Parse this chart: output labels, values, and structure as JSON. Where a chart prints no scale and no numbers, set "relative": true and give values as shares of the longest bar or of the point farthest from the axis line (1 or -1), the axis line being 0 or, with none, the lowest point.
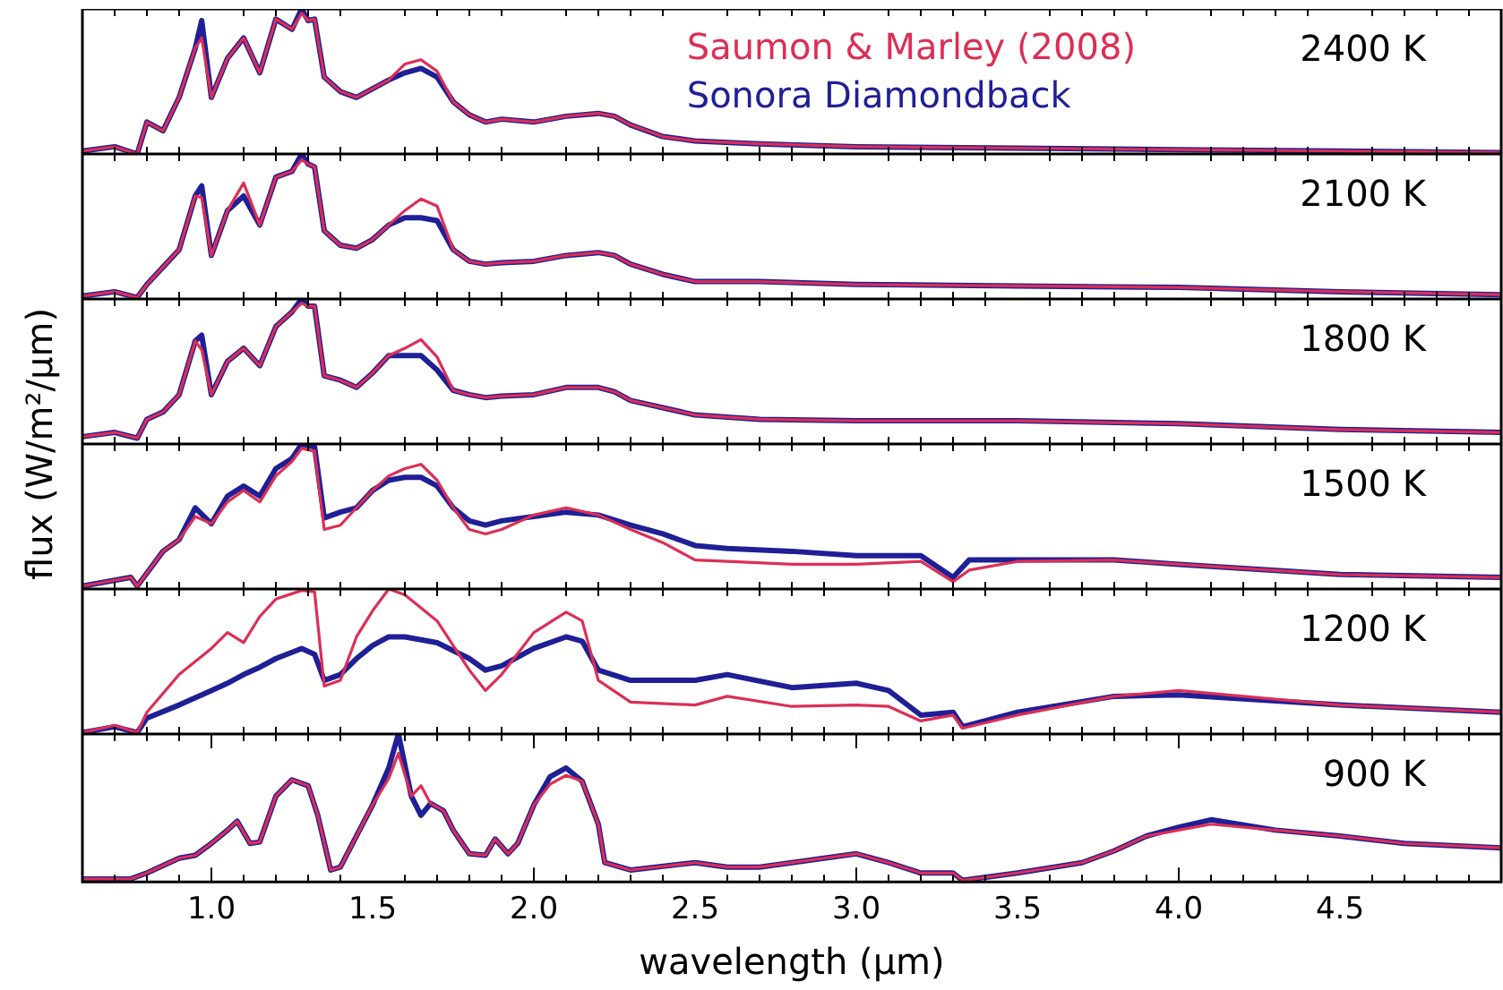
{
  "chart_data": [
    {
      "type": "line",
      "relative": true,
      "tick_labels": false,
      "legend": "top right",
      "annotations": [
        "2400 K"
      ],
      "xlim": [
        0.6,
        5.0
      ],
      "xticks": [
        {
          "value": 0.7,
          "label": null
        },
        {
          "value": 0.8,
          "label": null
        },
        {
          "value": 0.9,
          "label": null
        },
        1,
        {
          "value": 1.1,
          "label": null
        },
        {
          "value": 1.2,
          "label": null
        },
        {
          "value": 1.3,
          "label": null
        },
        {
          "value": 1.4,
          "label": null
        },
        1.5,
        {
          "value": 1.6,
          "label": null
        },
        {
          "value": 1.7,
          "label": null
        },
        {
          "value": 1.8,
          "label": null
        },
        {
          "value": 1.9,
          "label": null
        },
        2,
        {
          "value": 2.1,
          "label": null
        },
        {
          "value": 2.2,
          "label": null
        },
        {
          "value": 2.3,
          "label": null
        },
        {
          "value": 2.4,
          "label": null
        },
        2.5,
        {
          "value": 2.6,
          "label": null
        },
        {
          "value": 2.7,
          "label": null
        },
        {
          "value": 2.8,
          "label": null
        },
        {
          "value": 2.9,
          "label": null
        },
        3,
        {
          "value": 3.1,
          "label": null
        },
        {
          "value": 3.2,
          "label": null
        },
        {
          "value": 3.3,
          "label": null
        },
        {
          "value": 3.4,
          "label": null
        },
        3.5,
        {
          "value": 3.6,
          "label": null
        },
        {
          "value": 3.7,
          "label": null
        },
        {
          "value": 3.8,
          "label": null
        },
        {
          "value": 3.9,
          "label": null
        },
        4,
        {
          "value": 4.1,
          "label": null
        },
        {
          "value": 4.2,
          "label": null
        },
        {
          "value": 4.3,
          "label": null
        },
        {
          "value": 4.4,
          "label": null
        },
        4.5,
        {
          "value": 4.6,
          "label": null
        },
        {
          "value": 4.7,
          "label": null
        },
        {
          "value": 4.8,
          "label": null
        },
        {
          "value": 4.9,
          "label": null
        }
      ],
      "x": [
        0.6,
        0.7,
        0.77,
        0.8,
        0.85,
        0.9,
        0.95,
        0.97,
        1.0,
        1.05,
        1.1,
        1.15,
        1.2,
        1.25,
        1.28,
        1.3,
        1.32,
        1.35,
        1.4,
        1.45,
        1.5,
        1.55,
        1.6,
        1.65,
        1.7,
        1.75,
        1.8,
        1.85,
        1.9,
        2.0,
        2.1,
        2.2,
        2.25,
        2.3,
        2.4,
        2.5,
        2.7,
        3.0,
        3.5,
        4.0,
        4.5,
        5.0
      ],
      "series": [
        {
          "name": "Saumon & Marley (2008)",
          "color": "#dc2f55",
          "values": [
            0.02,
            0.05,
            0.0,
            0.22,
            0.16,
            0.39,
            0.73,
            0.8,
            0.39,
            0.66,
            0.8,
            0.56,
            0.93,
            0.86,
            0.97,
            0.92,
            0.93,
            0.53,
            0.43,
            0.39,
            0.45,
            0.51,
            0.62,
            0.65,
            0.57,
            0.36,
            0.27,
            0.22,
            0.24,
            0.22,
            0.26,
            0.28,
            0.26,
            0.2,
            0.12,
            0.09,
            0.07,
            0.05,
            0.04,
            0.03,
            0.02,
            0.01
          ]
        },
        {
          "name": "Sonora Diamondback",
          "color": "#1f1f96",
          "values": [
            0.02,
            0.05,
            0.0,
            0.22,
            0.16,
            0.39,
            0.73,
            0.92,
            0.39,
            0.66,
            0.8,
            0.56,
            0.93,
            0.86,
            1.0,
            0.92,
            0.93,
            0.53,
            0.43,
            0.39,
            0.45,
            0.51,
            0.56,
            0.59,
            0.53,
            0.36,
            0.27,
            0.22,
            0.24,
            0.22,
            0.26,
            0.28,
            0.26,
            0.2,
            0.12,
            0.09,
            0.07,
            0.05,
            0.04,
            0.03,
            0.02,
            0.01
          ]
        }
      ]
    },
    {
      "type": "line",
      "relative": true,
      "tick_labels": false,
      "annotations": [
        "2100 K"
      ],
      "xlim": [
        0.6,
        5.0
      ],
      "xticks": [
        {
          "value": 0.7,
          "label": null
        },
        {
          "value": 0.8,
          "label": null
        },
        {
          "value": 0.9,
          "label": null
        },
        1,
        {
          "value": 1.1,
          "label": null
        },
        {
          "value": 1.2,
          "label": null
        },
        {
          "value": 1.3,
          "label": null
        },
        {
          "value": 1.4,
          "label": null
        },
        1.5,
        {
          "value": 1.6,
          "label": null
        },
        {
          "value": 1.7,
          "label": null
        },
        {
          "value": 1.8,
          "label": null
        },
        {
          "value": 1.9,
          "label": null
        },
        2,
        {
          "value": 2.1,
          "label": null
        },
        {
          "value": 2.2,
          "label": null
        },
        {
          "value": 2.3,
          "label": null
        },
        {
          "value": 2.4,
          "label": null
        },
        2.5,
        {
          "value": 2.6,
          "label": null
        },
        {
          "value": 2.7,
          "label": null
        },
        {
          "value": 2.8,
          "label": null
        },
        {
          "value": 2.9,
          "label": null
        },
        3,
        {
          "value": 3.1,
          "label": null
        },
        {
          "value": 3.2,
          "label": null
        },
        {
          "value": 3.3,
          "label": null
        },
        {
          "value": 3.4,
          "label": null
        },
        3.5,
        {
          "value": 3.6,
          "label": null
        },
        {
          "value": 3.7,
          "label": null
        },
        {
          "value": 3.8,
          "label": null
        },
        {
          "value": 3.9,
          "label": null
        },
        4,
        {
          "value": 4.1,
          "label": null
        },
        {
          "value": 4.2,
          "label": null
        },
        {
          "value": 4.3,
          "label": null
        },
        {
          "value": 4.4,
          "label": null
        },
        4.5,
        {
          "value": 4.6,
          "label": null
        },
        {
          "value": 4.7,
          "label": null
        },
        {
          "value": 4.8,
          "label": null
        },
        {
          "value": 4.9,
          "label": null
        }
      ],
      "x": [
        0.6,
        0.7,
        0.77,
        0.8,
        0.85,
        0.9,
        0.95,
        0.97,
        1.0,
        1.05,
        1.1,
        1.15,
        1.2,
        1.25,
        1.28,
        1.3,
        1.32,
        1.35,
        1.4,
        1.45,
        1.5,
        1.55,
        1.6,
        1.65,
        1.7,
        1.75,
        1.8,
        1.85,
        1.9,
        2.0,
        2.1,
        2.2,
        2.25,
        2.3,
        2.4,
        2.5,
        2.7,
        3.0,
        3.5,
        4.0,
        4.5,
        5.0
      ],
      "series": [
        {
          "color": "#dc2f55",
          "values": [
            0.02,
            0.05,
            0.01,
            0.1,
            0.22,
            0.34,
            0.71,
            0.7,
            0.3,
            0.61,
            0.8,
            0.51,
            0.84,
            0.88,
            0.96,
            0.93,
            0.91,
            0.47,
            0.37,
            0.35,
            0.41,
            0.51,
            0.61,
            0.69,
            0.64,
            0.34,
            0.26,
            0.24,
            0.25,
            0.26,
            0.3,
            0.32,
            0.3,
            0.24,
            0.17,
            0.12,
            0.12,
            0.1,
            0.09,
            0.08,
            0.05,
            0.03
          ]
        },
        {
          "color": "#1f1f96",
          "values": [
            0.02,
            0.05,
            0.01,
            0.1,
            0.22,
            0.34,
            0.71,
            0.78,
            0.3,
            0.61,
            0.71,
            0.51,
            0.84,
            0.88,
            1.0,
            0.93,
            0.91,
            0.47,
            0.37,
            0.35,
            0.41,
            0.51,
            0.56,
            0.56,
            0.54,
            0.34,
            0.26,
            0.24,
            0.25,
            0.26,
            0.3,
            0.32,
            0.3,
            0.24,
            0.17,
            0.12,
            0.12,
            0.1,
            0.09,
            0.08,
            0.05,
            0.03
          ]
        }
      ]
    },
    {
      "type": "line",
      "relative": true,
      "tick_labels": false,
      "annotations": [
        "1800 K"
      ],
      "xlim": [
        0.6,
        5.0
      ],
      "xticks": [
        {
          "value": 0.7,
          "label": null
        },
        {
          "value": 0.8,
          "label": null
        },
        {
          "value": 0.9,
          "label": null
        },
        1,
        {
          "value": 1.1,
          "label": null
        },
        {
          "value": 1.2,
          "label": null
        },
        {
          "value": 1.3,
          "label": null
        },
        {
          "value": 1.4,
          "label": null
        },
        1.5,
        {
          "value": 1.6,
          "label": null
        },
        {
          "value": 1.7,
          "label": null
        },
        {
          "value": 1.8,
          "label": null
        },
        {
          "value": 1.9,
          "label": null
        },
        2,
        {
          "value": 2.1,
          "label": null
        },
        {
          "value": 2.2,
          "label": null
        },
        {
          "value": 2.3,
          "label": null
        },
        {
          "value": 2.4,
          "label": null
        },
        2.5,
        {
          "value": 2.6,
          "label": null
        },
        {
          "value": 2.7,
          "label": null
        },
        {
          "value": 2.8,
          "label": null
        },
        {
          "value": 2.9,
          "label": null
        },
        3,
        {
          "value": 3.1,
          "label": null
        },
        {
          "value": 3.2,
          "label": null
        },
        {
          "value": 3.3,
          "label": null
        },
        {
          "value": 3.4,
          "label": null
        },
        3.5,
        {
          "value": 3.6,
          "label": null
        },
        {
          "value": 3.7,
          "label": null
        },
        {
          "value": 3.8,
          "label": null
        },
        {
          "value": 3.9,
          "label": null
        },
        4,
        {
          "value": 4.1,
          "label": null
        },
        {
          "value": 4.2,
          "label": null
        },
        {
          "value": 4.3,
          "label": null
        },
        {
          "value": 4.4,
          "label": null
        },
        4.5,
        {
          "value": 4.6,
          "label": null
        },
        {
          "value": 4.7,
          "label": null
        },
        {
          "value": 4.8,
          "label": null
        },
        {
          "value": 4.9,
          "label": null
        }
      ],
      "x": [
        0.6,
        0.7,
        0.77,
        0.8,
        0.85,
        0.9,
        0.95,
        0.97,
        1.0,
        1.05,
        1.1,
        1.15,
        1.2,
        1.25,
        1.28,
        1.3,
        1.32,
        1.35,
        1.4,
        1.45,
        1.5,
        1.55,
        1.6,
        1.65,
        1.7,
        1.75,
        1.8,
        1.85,
        1.9,
        2.0,
        2.1,
        2.2,
        2.25,
        2.3,
        2.4,
        2.5,
        2.7,
        3.0,
        3.5,
        4.0,
        4.5,
        5.0
      ],
      "series": [
        {
          "color": "#dc2f55",
          "values": [
            0.05,
            0.08,
            0.04,
            0.17,
            0.22,
            0.34,
            0.71,
            0.65,
            0.34,
            0.57,
            0.66,
            0.54,
            0.81,
            0.91,
            0.97,
            0.95,
            0.95,
            0.47,
            0.44,
            0.39,
            0.49,
            0.61,
            0.66,
            0.72,
            0.6,
            0.37,
            0.34,
            0.32,
            0.33,
            0.34,
            0.39,
            0.39,
            0.36,
            0.3,
            0.25,
            0.2,
            0.17,
            0.16,
            0.16,
            0.14,
            0.1,
            0.08
          ]
        },
        {
          "color": "#1f1f96",
          "values": [
            0.05,
            0.08,
            0.04,
            0.17,
            0.22,
            0.34,
            0.71,
            0.75,
            0.34,
            0.57,
            0.66,
            0.54,
            0.81,
            0.91,
            1.0,
            0.95,
            0.95,
            0.47,
            0.44,
            0.39,
            0.49,
            0.61,
            0.61,
            0.61,
            0.51,
            0.37,
            0.34,
            0.32,
            0.33,
            0.34,
            0.39,
            0.39,
            0.36,
            0.3,
            0.25,
            0.2,
            0.17,
            0.16,
            0.16,
            0.14,
            0.1,
            0.08
          ]
        }
      ]
    },
    {
      "type": "line",
      "relative": true,
      "tick_labels": false,
      "ylabel": "flux (W/m²/μm)",
      "annotations": [
        "1500 K"
      ],
      "xlim": [
        0.6,
        5.0
      ],
      "xticks": [
        {
          "value": 0.7,
          "label": null
        },
        {
          "value": 0.8,
          "label": null
        },
        {
          "value": 0.9,
          "label": null
        },
        1,
        {
          "value": 1.1,
          "label": null
        },
        {
          "value": 1.2,
          "label": null
        },
        {
          "value": 1.3,
          "label": null
        },
        {
          "value": 1.4,
          "label": null
        },
        1.5,
        {
          "value": 1.6,
          "label": null
        },
        {
          "value": 1.7,
          "label": null
        },
        {
          "value": 1.8,
          "label": null
        },
        {
          "value": 1.9,
          "label": null
        },
        2,
        {
          "value": 2.1,
          "label": null
        },
        {
          "value": 2.2,
          "label": null
        },
        {
          "value": 2.3,
          "label": null
        },
        {
          "value": 2.4,
          "label": null
        },
        2.5,
        {
          "value": 2.6,
          "label": null
        },
        {
          "value": 2.7,
          "label": null
        },
        {
          "value": 2.8,
          "label": null
        },
        {
          "value": 2.9,
          "label": null
        },
        3,
        {
          "value": 3.1,
          "label": null
        },
        {
          "value": 3.2,
          "label": null
        },
        {
          "value": 3.3,
          "label": null
        },
        {
          "value": 3.4,
          "label": null
        },
        3.5,
        {
          "value": 3.6,
          "label": null
        },
        {
          "value": 3.7,
          "label": null
        },
        {
          "value": 3.8,
          "label": null
        },
        {
          "value": 3.9,
          "label": null
        },
        4,
        {
          "value": 4.1,
          "label": null
        },
        {
          "value": 4.2,
          "label": null
        },
        {
          "value": 4.3,
          "label": null
        },
        {
          "value": 4.4,
          "label": null
        },
        4.5,
        {
          "value": 4.6,
          "label": null
        },
        {
          "value": 4.7,
          "label": null
        },
        {
          "value": 4.8,
          "label": null
        },
        {
          "value": 4.9,
          "label": null
        }
      ],
      "x": [
        0.6,
        0.75,
        0.77,
        0.8,
        0.85,
        0.9,
        0.95,
        1.0,
        1.05,
        1.1,
        1.15,
        1.2,
        1.25,
        1.28,
        1.32,
        1.35,
        1.4,
        1.45,
        1.5,
        1.55,
        1.6,
        1.65,
        1.7,
        1.75,
        1.8,
        1.85,
        1.9,
        2.0,
        2.1,
        2.2,
        2.3,
        2.4,
        2.5,
        2.6,
        2.8,
        3.0,
        3.2,
        3.3,
        3.35,
        3.5,
        3.8,
        4.0,
        4.5,
        5.0
      ],
      "series": [
        {
          "color": "#dc2f55",
          "values": [
            0.02,
            0.08,
            0.02,
            0.11,
            0.26,
            0.34,
            0.5,
            0.45,
            0.6,
            0.68,
            0.6,
            0.78,
            0.88,
            0.97,
            0.95,
            0.41,
            0.44,
            0.56,
            0.68,
            0.78,
            0.83,
            0.86,
            0.75,
            0.56,
            0.41,
            0.38,
            0.41,
            0.51,
            0.56,
            0.51,
            0.41,
            0.32,
            0.2,
            0.19,
            0.17,
            0.17,
            0.19,
            0.05,
            0.13,
            0.19,
            0.2,
            0.17,
            0.1,
            0.08
          ]
        },
        {
          "color": "#1f1f96",
          "values": [
            0.02,
            0.08,
            0.02,
            0.11,
            0.26,
            0.34,
            0.56,
            0.45,
            0.64,
            0.71,
            0.64,
            0.83,
            0.9,
            1.0,
            0.98,
            0.49,
            0.53,
            0.56,
            0.68,
            0.75,
            0.77,
            0.77,
            0.71,
            0.56,
            0.47,
            0.44,
            0.47,
            0.5,
            0.53,
            0.51,
            0.44,
            0.38,
            0.3,
            0.28,
            0.26,
            0.23,
            0.23,
            0.08,
            0.2,
            0.2,
            0.2,
            0.17,
            0.1,
            0.08
          ]
        }
      ]
    },
    {
      "type": "line",
      "relative": true,
      "tick_labels": false,
      "annotations": [
        "1200 K"
      ],
      "xlim": [
        0.6,
        5.0
      ],
      "xticks": [
        {
          "value": 0.7,
          "label": null
        },
        {
          "value": 0.8,
          "label": null
        },
        {
          "value": 0.9,
          "label": null
        },
        1,
        {
          "value": 1.1,
          "label": null
        },
        {
          "value": 1.2,
          "label": null
        },
        {
          "value": 1.3,
          "label": null
        },
        {
          "value": 1.4,
          "label": null
        },
        1.5,
        {
          "value": 1.6,
          "label": null
        },
        {
          "value": 1.7,
          "label": null
        },
        {
          "value": 1.8,
          "label": null
        },
        {
          "value": 1.9,
          "label": null
        },
        2,
        {
          "value": 2.1,
          "label": null
        },
        {
          "value": 2.2,
          "label": null
        },
        {
          "value": 2.3,
          "label": null
        },
        {
          "value": 2.4,
          "label": null
        },
        2.5,
        {
          "value": 2.6,
          "label": null
        },
        {
          "value": 2.7,
          "label": null
        },
        {
          "value": 2.8,
          "label": null
        },
        {
          "value": 2.9,
          "label": null
        },
        3,
        {
          "value": 3.1,
          "label": null
        },
        {
          "value": 3.2,
          "label": null
        },
        {
          "value": 3.3,
          "label": null
        },
        {
          "value": 3.4,
          "label": null
        },
        3.5,
        {
          "value": 3.6,
          "label": null
        },
        {
          "value": 3.7,
          "label": null
        },
        {
          "value": 3.8,
          "label": null
        },
        {
          "value": 3.9,
          "label": null
        },
        4,
        {
          "value": 4.1,
          "label": null
        },
        {
          "value": 4.2,
          "label": null
        },
        {
          "value": 4.3,
          "label": null
        },
        {
          "value": 4.4,
          "label": null
        },
        4.5,
        {
          "value": 4.6,
          "label": null
        },
        {
          "value": 4.7,
          "label": null
        },
        {
          "value": 4.8,
          "label": null
        },
        {
          "value": 4.9,
          "label": null
        }
      ],
      "x": [
        0.6,
        0.7,
        0.77,
        0.8,
        0.9,
        1.0,
        1.05,
        1.1,
        1.15,
        1.2,
        1.28,
        1.32,
        1.35,
        1.4,
        1.45,
        1.5,
        1.55,
        1.6,
        1.7,
        1.8,
        1.85,
        1.9,
        2.0,
        2.1,
        2.15,
        2.2,
        2.3,
        2.5,
        2.6,
        2.8,
        3.0,
        3.1,
        3.2,
        3.3,
        3.33,
        3.5,
        3.8,
        4.0,
        4.5,
        5.0
      ],
      "series": [
        {
          "color": "#dc2f55",
          "values": [
            0.01,
            0.06,
            0.01,
            0.15,
            0.41,
            0.59,
            0.7,
            0.63,
            0.81,
            0.93,
            0.99,
            0.98,
            0.33,
            0.37,
            0.67,
            0.85,
            1.0,
            0.96,
            0.78,
            0.44,
            0.3,
            0.41,
            0.7,
            0.84,
            0.78,
            0.37,
            0.22,
            0.2,
            0.26,
            0.19,
            0.2,
            0.19,
            0.09,
            0.13,
            0.04,
            0.13,
            0.26,
            0.3,
            0.2,
            0.15
          ]
        },
        {
          "color": "#1f1f96",
          "values": [
            0.01,
            0.05,
            0.01,
            0.11,
            0.2,
            0.3,
            0.35,
            0.41,
            0.46,
            0.52,
            0.59,
            0.55,
            0.37,
            0.41,
            0.52,
            0.61,
            0.67,
            0.67,
            0.63,
            0.52,
            0.44,
            0.47,
            0.59,
            0.67,
            0.64,
            0.44,
            0.37,
            0.37,
            0.41,
            0.32,
            0.35,
            0.3,
            0.13,
            0.15,
            0.05,
            0.15,
            0.26,
            0.27,
            0.2,
            0.15
          ]
        }
      ]
    },
    {
      "type": "line",
      "relative": true,
      "tick_labels": "x",
      "xlabel": "wavelength (μm)",
      "annotations": [
        "900 K"
      ],
      "xlim": [
        0.6,
        5.0
      ],
      "xticks": [
        {
          "value": 0.7,
          "label": null
        },
        {
          "value": 0.8,
          "label": null
        },
        {
          "value": 0.9,
          "label": null
        },
        {
          "value": 1.0,
          "label": "1.0"
        },
        {
          "value": 1.1,
          "label": null
        },
        {
          "value": 1.2,
          "label": null
        },
        {
          "value": 1.3,
          "label": null
        },
        {
          "value": 1.4,
          "label": null
        },
        1.5,
        {
          "value": 1.6,
          "label": null
        },
        {
          "value": 1.7,
          "label": null
        },
        {
          "value": 1.8,
          "label": null
        },
        {
          "value": 1.9,
          "label": null
        },
        {
          "value": 2.0,
          "label": "2.0"
        },
        {
          "value": 2.1,
          "label": null
        },
        {
          "value": 2.2,
          "label": null
        },
        {
          "value": 2.3,
          "label": null
        },
        {
          "value": 2.4,
          "label": null
        },
        2.5,
        {
          "value": 2.6,
          "label": null
        },
        {
          "value": 2.7,
          "label": null
        },
        {
          "value": 2.8,
          "label": null
        },
        {
          "value": 2.9,
          "label": null
        },
        {
          "value": 3.0,
          "label": "3.0"
        },
        {
          "value": 3.1,
          "label": null
        },
        {
          "value": 3.2,
          "label": null
        },
        {
          "value": 3.3,
          "label": null
        },
        {
          "value": 3.4,
          "label": null
        },
        3.5,
        {
          "value": 3.6,
          "label": null
        },
        {
          "value": 3.7,
          "label": null
        },
        {
          "value": 3.8,
          "label": null
        },
        {
          "value": 3.9,
          "label": null
        },
        {
          "value": 4.0,
          "label": "4.0"
        },
        {
          "value": 4.1,
          "label": null
        },
        {
          "value": 4.2,
          "label": null
        },
        {
          "value": 4.3,
          "label": null
        },
        {
          "value": 4.4,
          "label": null
        },
        4.5,
        {
          "value": 4.6,
          "label": null
        },
        {
          "value": 4.7,
          "label": null
        },
        {
          "value": 4.8,
          "label": null
        },
        {
          "value": 4.9,
          "label": null
        }
      ],
      "x": [
        0.6,
        0.75,
        0.8,
        0.9,
        0.95,
        1.0,
        1.05,
        1.08,
        1.12,
        1.15,
        1.2,
        1.25,
        1.3,
        1.33,
        1.37,
        1.4,
        1.45,
        1.5,
        1.55,
        1.58,
        1.62,
        1.65,
        1.68,
        1.72,
        1.75,
        1.8,
        1.85,
        1.88,
        1.92,
        1.95,
        2.0,
        2.05,
        2.1,
        2.15,
        2.2,
        2.22,
        2.3,
        2.5,
        2.6,
        2.7,
        2.9,
        3.0,
        3.1,
        3.2,
        3.3,
        3.33,
        3.5,
        3.7,
        3.8,
        3.9,
        4.0,
        4.1,
        4.3,
        4.5,
        4.7,
        5.0
      ],
      "series": [
        {
          "color": "#dc2f55",
          "values": [
            0.02,
            0.02,
            0.06,
            0.16,
            0.18,
            0.26,
            0.35,
            0.41,
            0.26,
            0.27,
            0.58,
            0.69,
            0.65,
            0.45,
            0.08,
            0.1,
            0.31,
            0.52,
            0.7,
            0.87,
            0.58,
            0.65,
            0.53,
            0.48,
            0.35,
            0.19,
            0.18,
            0.29,
            0.19,
            0.26,
            0.52,
            0.66,
            0.72,
            0.68,
            0.39,
            0.13,
            0.08,
            0.13,
            0.1,
            0.1,
            0.16,
            0.19,
            0.13,
            0.06,
            0.06,
            0.01,
            0.06,
            0.13,
            0.21,
            0.31,
            0.35,
            0.39,
            0.35,
            0.31,
            0.26,
            0.23
          ]
        },
        {
          "color": "#1f1f96",
          "values": [
            0.02,
            0.02,
            0.06,
            0.16,
            0.18,
            0.26,
            0.35,
            0.41,
            0.26,
            0.27,
            0.58,
            0.69,
            0.65,
            0.45,
            0.08,
            0.1,
            0.31,
            0.52,
            0.77,
            1.0,
            0.58,
            0.45,
            0.53,
            0.48,
            0.35,
            0.19,
            0.18,
            0.29,
            0.19,
            0.26,
            0.52,
            0.71,
            0.77,
            0.68,
            0.39,
            0.13,
            0.08,
            0.13,
            0.1,
            0.1,
            0.16,
            0.19,
            0.13,
            0.06,
            0.06,
            0.01,
            0.06,
            0.13,
            0.21,
            0.31,
            0.37,
            0.42,
            0.35,
            0.31,
            0.26,
            0.23
          ]
        }
      ]
    }
  ]
}
